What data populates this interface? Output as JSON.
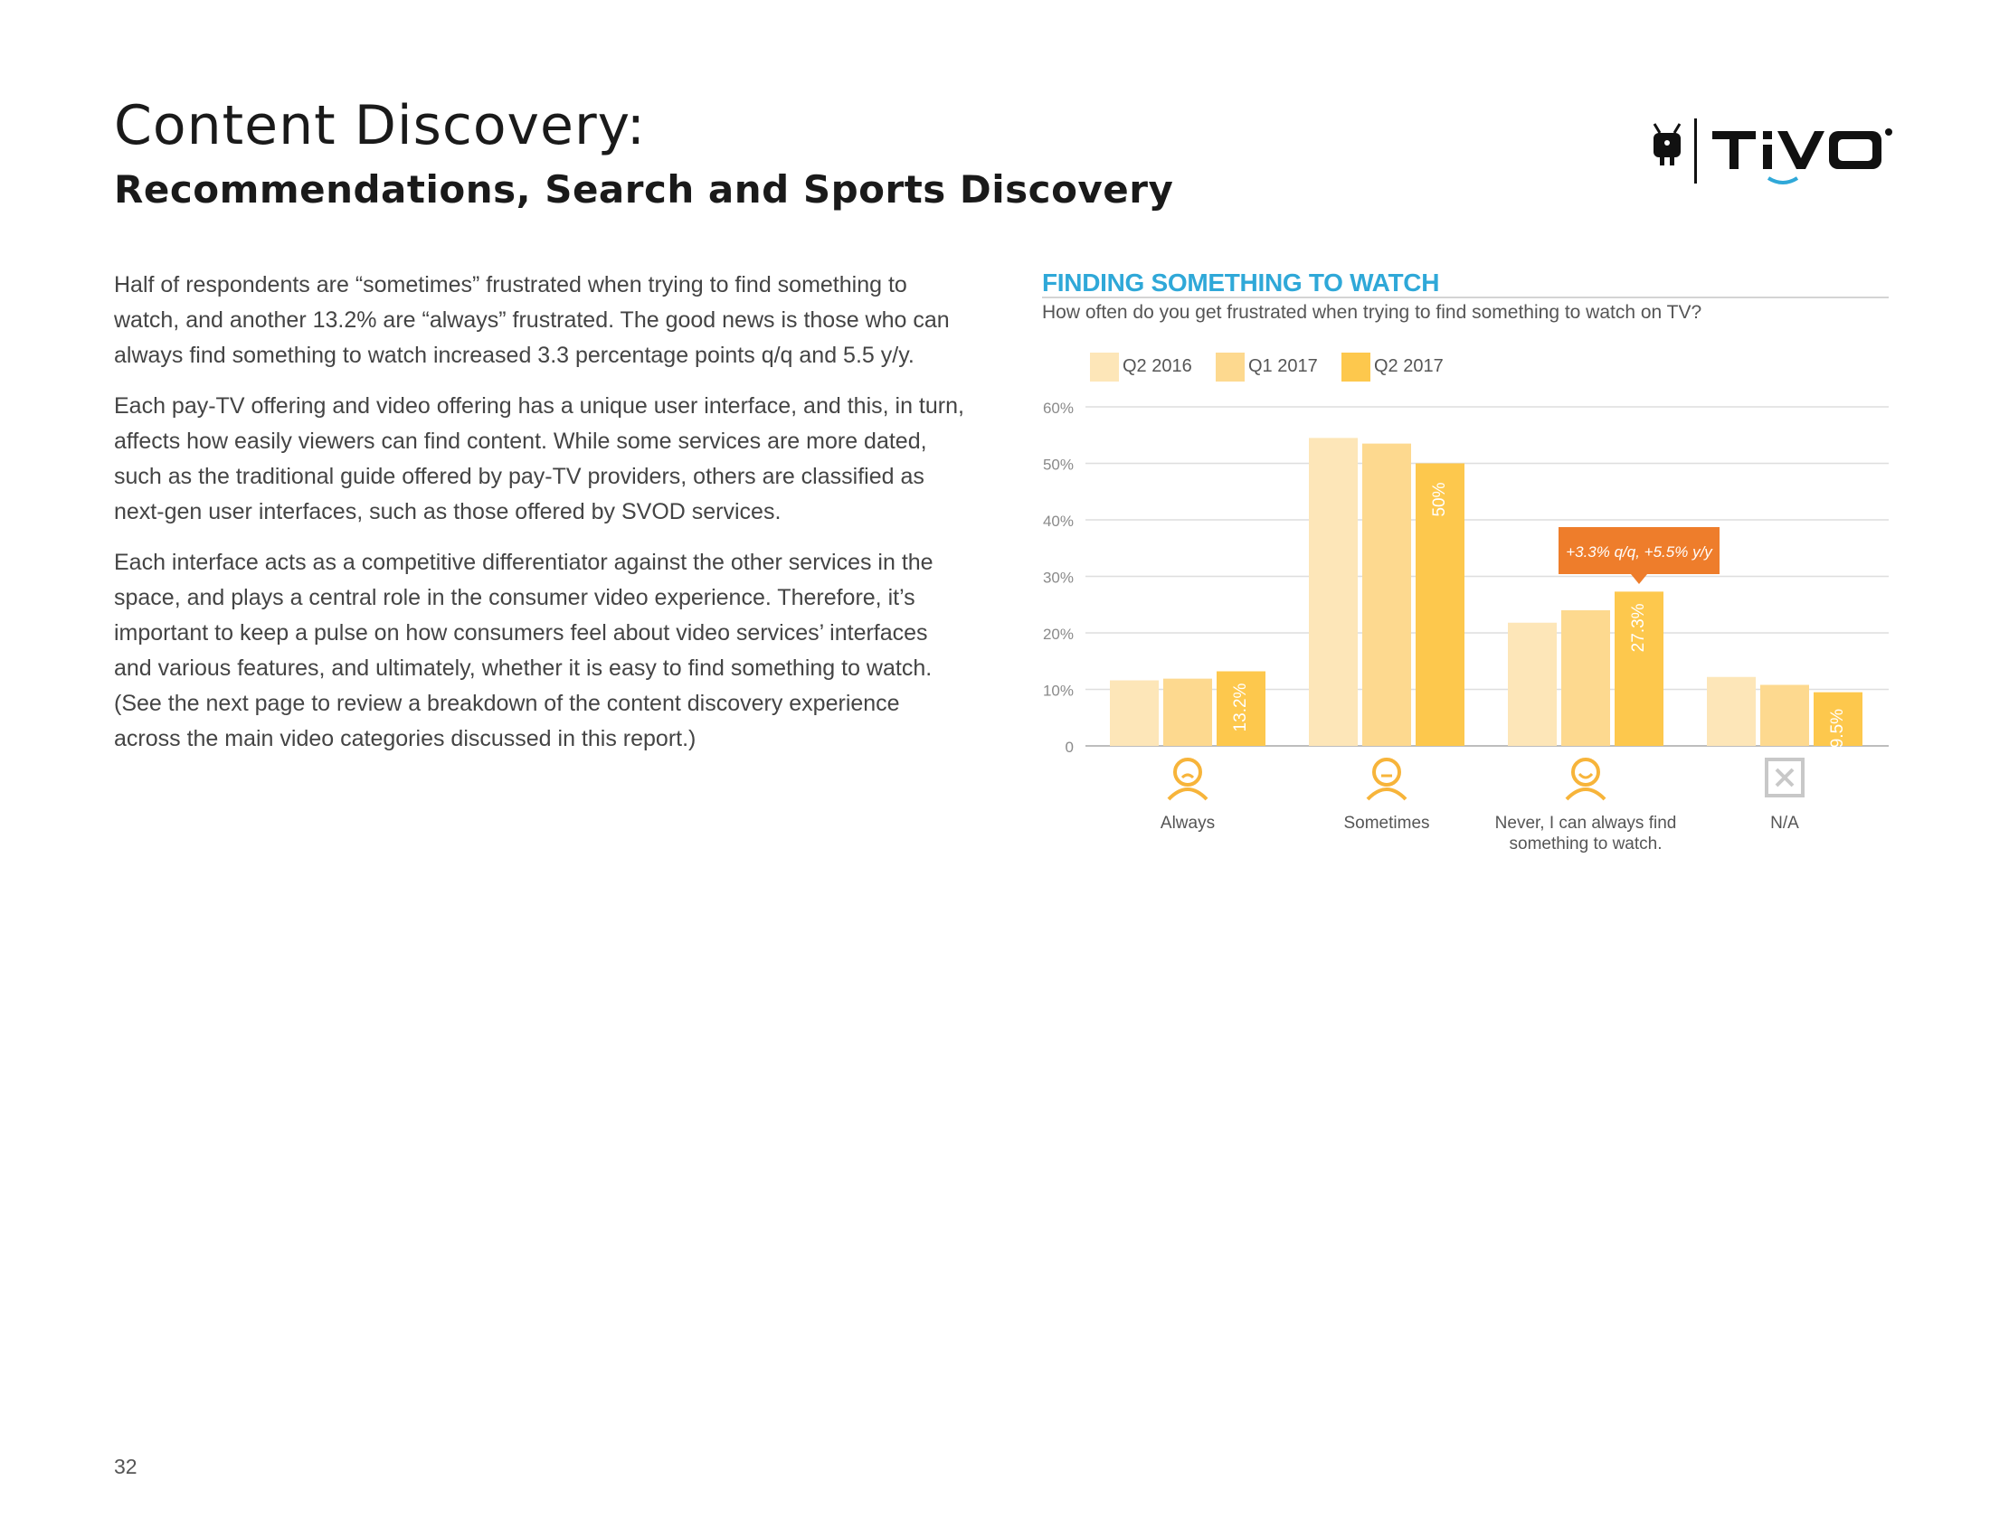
{
  "page": {
    "title": "Content Discovery:",
    "subtitle": "Recommendations, Search and Sports Discovery",
    "page_number": "32",
    "logo_text": "TiVo"
  },
  "body": {
    "paragraphs": [
      "Half of respondents are “sometimes” frustrated when trying to find something to watch, and another 13.2% are “always” frustrated. The good news is those who can always find something to watch increased 3.3 percentage points q/q and 5.5 y/y.",
      "Each pay-TV offering and video offering has a unique user interface, and this, in turn, affects how easily viewers can find content. While some services are more dated, such as the traditional guide offered by pay-TV providers, others are classified as next-gen user interfaces, such as those offered by SVOD services.",
      "Each interface acts as a competitive differentiator against the other services in the space, and plays a central role in the consumer video experience. Therefore, it’s important to keep a pulse on how consumers feel about video services’ interfaces and various features, and ultimately, whether it is easy to find something to watch. (See the next page to review a breakdown of the content discovery experience across the main video categories discussed in this report.)"
    ]
  },
  "chart_data": {
    "type": "bar",
    "title": "FINDING SOMETHING TO WATCH",
    "subtitle": "How often do you get frustrated when trying to find something to watch on TV?",
    "categories": [
      "Always",
      "Sometimes",
      "Never, I can always find something to watch.",
      "N/A"
    ],
    "category_icons": [
      "frown-face-icon",
      "neutral-face-icon",
      "smile-face-icon",
      "x-box-icon"
    ],
    "series": [
      {
        "name": "Q2 2016",
        "color": "#fde6b8",
        "values": [
          11.6,
          54.5,
          21.8,
          12.2
        ]
      },
      {
        "name": "Q1 2017",
        "color": "#fdd98f",
        "values": [
          11.9,
          53.5,
          24.0,
          10.8
        ]
      },
      {
        "name": "Q2 2017",
        "color": "#fdc84d",
        "values": [
          13.2,
          50.0,
          27.3,
          9.5
        ]
      }
    ],
    "data_labels": [
      {
        "series": 2,
        "category": 0,
        "text": "13.2%"
      },
      {
        "series": 2,
        "category": 1,
        "text": "50%"
      },
      {
        "series": 2,
        "category": 2,
        "text": "27.3%"
      },
      {
        "series": 2,
        "category": 3,
        "text": "9.5%"
      }
    ],
    "y_ticks": [
      "0",
      "10%",
      "20%",
      "30%",
      "40%",
      "50%",
      "60%"
    ],
    "ylim": [
      0,
      60
    ],
    "grid": true,
    "legend_position": "top-left",
    "annotation": {
      "series": 2,
      "category": 2,
      "text": "+3.3% q/q, +5.5% y/y",
      "color": "#ee7d2b"
    },
    "icon_color": "#f7b43a",
    "na_icon_color": "#c8c8c8"
  }
}
